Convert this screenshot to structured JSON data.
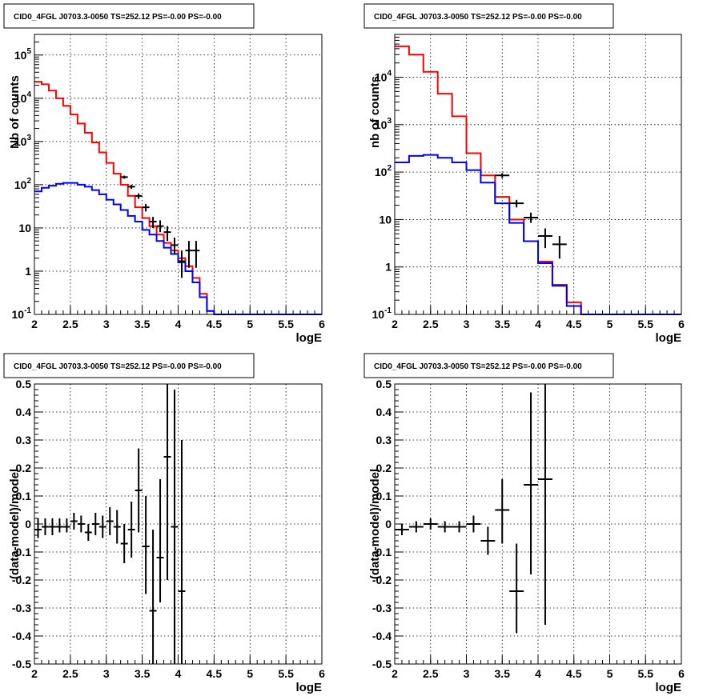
{
  "chart_data": [
    {
      "type": "line",
      "title": "CID0_4FGL J0703.3-0050 TS=252.12 PS=-0.00 PS=-0.00",
      "xlabel": "logE",
      "ylabel": "Nb of counts",
      "xlim": [
        2,
        6
      ],
      "ylim": [
        0.1,
        300000
      ],
      "yscale": "log",
      "grid": true,
      "x_ticks": [
        "2",
        "2.5",
        "3",
        "3.5",
        "4",
        "4.5",
        "5",
        "5.5",
        "6"
      ],
      "y_ticks": [
        {
          "value": 0.1,
          "base": "10",
          "exp": "-1"
        },
        {
          "value": 1,
          "label": "1"
        },
        {
          "value": 10,
          "label": "10"
        },
        {
          "value": 100,
          "base": "10",
          "exp": "2"
        },
        {
          "value": 1000,
          "base": "10",
          "exp": "3"
        },
        {
          "value": 10000,
          "base": "10",
          "exp": "4"
        },
        {
          "value": 100000,
          "base": "10",
          "exp": "5"
        }
      ],
      "bin_edges": [
        2.0,
        2.1,
        2.2,
        2.3,
        2.4,
        2.5,
        2.6,
        2.7,
        2.8,
        2.9,
        3.0,
        3.1,
        3.2,
        3.3,
        3.4,
        3.5,
        3.6,
        3.7,
        3.8,
        3.9,
        4.0,
        4.1,
        4.2,
        4.3,
        4.4,
        4.5,
        4.6,
        4.7,
        4.8,
        4.9,
        5.0,
        5.1,
        5.2,
        5.3,
        5.4,
        5.5,
        5.6,
        5.7,
        5.8,
        5.9,
        6.0
      ],
      "series": [
        {
          "color": "#ff0000",
          "style": "step",
          "values": [
            24000,
            21000,
            15000,
            10000,
            6700,
            4200,
            2600,
            1600,
            950,
            560,
            320,
            180,
            100,
            55,
            30,
            17,
            11,
            7,
            4.5,
            3,
            2,
            1.3,
            0.7,
            0.3,
            0.12,
            0.1,
            0.1,
            0.1,
            0.1,
            0.1,
            0.1,
            0.1,
            0.1,
            0.1,
            0.1,
            0.1,
            0.1,
            0.1,
            0.1,
            0.1
          ]
        },
        {
          "color": "#0000ff",
          "style": "step",
          "values": [
            70,
            85,
            95,
            105,
            110,
            110,
            100,
            90,
            75,
            60,
            45,
            35,
            26,
            19,
            14,
            9,
            7,
            5,
            3.5,
            2.5,
            1.6,
            1.0,
            0.55,
            0.25,
            0.12,
            0.1,
            0.1,
            0.1,
            0.1,
            0.1,
            0.1,
            0.1,
            0.1,
            0.1,
            0.1,
            0.1,
            0.1,
            0.1,
            0.1,
            0.1
          ]
        }
      ],
      "points": [
        {
          "x": 3.25,
          "y": 150,
          "lo": 138,
          "hi": 162,
          "xerr": 0.05
        },
        {
          "x": 3.35,
          "y": 90,
          "lo": 80,
          "hi": 100,
          "xerr": 0.05
        },
        {
          "x": 3.45,
          "y": 55,
          "lo": 47,
          "hi": 63,
          "xerr": 0.05
        },
        {
          "x": 3.55,
          "y": 30,
          "lo": 24,
          "hi": 36,
          "xerr": 0.05
        },
        {
          "x": 3.65,
          "y": 14,
          "lo": 10,
          "hi": 18,
          "xerr": 0.05
        },
        {
          "x": 3.75,
          "y": 11,
          "lo": 8,
          "hi": 15,
          "xerr": 0.05
        },
        {
          "x": 3.85,
          "y": 8,
          "lo": 5,
          "hi": 11,
          "xerr": 0.05
        },
        {
          "x": 3.95,
          "y": 4,
          "lo": 2.5,
          "hi": 6,
          "xerr": 0.05
        },
        {
          "x": 4.05,
          "y": 1.7,
          "lo": 0.7,
          "hi": 3,
          "xerr": 0.05
        },
        {
          "x": 4.15,
          "y": 3,
          "lo": 1.2,
          "hi": 5,
          "xerr": 0.05
        },
        {
          "x": 4.25,
          "y": 3,
          "lo": 1.2,
          "hi": 5,
          "xerr": 0.05
        }
      ]
    },
    {
      "type": "line",
      "title": "CID0_4FGL J0703.3-0050 TS=252.12 PS=-0.00 PS=-0.00",
      "xlabel": "logE",
      "ylabel": "nb of counts",
      "xlim": [
        2,
        6
      ],
      "ylim": [
        0.1,
        80000
      ],
      "yscale": "log",
      "grid": true,
      "x_ticks": [
        "2",
        "2.5",
        "3",
        "3.5",
        "4",
        "4.5",
        "5",
        "5.5",
        "6"
      ],
      "y_ticks": [
        {
          "value": 0.1,
          "base": "10",
          "exp": "-1"
        },
        {
          "value": 1,
          "label": "1"
        },
        {
          "value": 10,
          "label": "10"
        },
        {
          "value": 100,
          "base": "10",
          "exp": "2"
        },
        {
          "value": 1000,
          "base": "10",
          "exp": "3"
        },
        {
          "value": 10000,
          "base": "10",
          "exp": "4"
        }
      ],
      "bin_edges": [
        2.0,
        2.2,
        2.4,
        2.6,
        2.8,
        3.0,
        3.2,
        3.4,
        3.6,
        3.8,
        4.0,
        4.2,
        4.4,
        4.6,
        4.8,
        5.0,
        5.2,
        5.4,
        5.6,
        5.8,
        6.0
      ],
      "series": [
        {
          "color": "#ff0000",
          "style": "step",
          "values": [
            45000,
            30000,
            13000,
            4500,
            1500,
            250,
            85,
            30,
            10,
            3.5,
            1.3,
            0.42,
            0.18,
            0.1,
            0.1,
            0.1,
            0.1,
            0.1,
            0.1,
            0.1
          ]
        },
        {
          "color": "#0000ff",
          "style": "step",
          "values": [
            160,
            220,
            230,
            200,
            160,
            110,
            60,
            22,
            8.5,
            3.5,
            1.2,
            0.4,
            0.15,
            0.1,
            0.1,
            0.1,
            0.1,
            0.1,
            0.1,
            0.1
          ]
        }
      ],
      "points": [
        {
          "x": 3.5,
          "y": 85,
          "lo": 75,
          "hi": 95,
          "xerr": 0.1
        },
        {
          "x": 3.7,
          "y": 22,
          "lo": 18,
          "hi": 26,
          "xerr": 0.1
        },
        {
          "x": 3.9,
          "y": 11,
          "lo": 8.5,
          "hi": 14,
          "xerr": 0.1
        },
        {
          "x": 4.1,
          "y": 4.5,
          "lo": 2.5,
          "hi": 6.5,
          "xerr": 0.1
        },
        {
          "x": 4.3,
          "y": 3,
          "lo": 1.5,
          "hi": 4.5,
          "xerr": 0.1
        }
      ]
    },
    {
      "type": "scatter",
      "title": "CID0_4FGL J0703.3-0050 TS=252.12 PS=-0.00 PS=-0.00",
      "xlabel": "logE",
      "ylabel": "(data-model)/model",
      "xlim": [
        2,
        6
      ],
      "ylim": [
        -0.5,
        0.5
      ],
      "yscale": "linear",
      "grid": true,
      "x_ticks": [
        "2",
        "2.5",
        "3",
        "3.5",
        "4",
        "4.5",
        "5",
        "5.5",
        "6"
      ],
      "y_ticks": [
        {
          "value": -0.5,
          "label": "-0.5"
        },
        {
          "value": -0.4,
          "label": "-0.4"
        },
        {
          "value": -0.3,
          "label": "-0.3"
        },
        {
          "value": -0.2,
          "label": "-0.2"
        },
        {
          "value": -0.1,
          "label": "-0.1"
        },
        {
          "value": 0,
          "label": "0"
        },
        {
          "value": 0.1,
          "label": "0.1"
        },
        {
          "value": 0.2,
          "label": "0.2"
        },
        {
          "value": 0.3,
          "label": "0.3"
        },
        {
          "value": 0.4,
          "label": "0.4"
        },
        {
          "value": 0.5,
          "label": "0.5"
        }
      ],
      "points": [
        {
          "x": 2.05,
          "y": -0.02,
          "lo": -0.05,
          "hi": 0.02,
          "xerr": 0.05
        },
        {
          "x": 2.15,
          "y": -0.01,
          "lo": -0.04,
          "hi": 0.02,
          "xerr": 0.05
        },
        {
          "x": 2.25,
          "y": -0.01,
          "lo": -0.04,
          "hi": 0.02,
          "xerr": 0.05
        },
        {
          "x": 2.35,
          "y": -0.01,
          "lo": -0.03,
          "hi": 0.02,
          "xerr": 0.05
        },
        {
          "x": 2.45,
          "y": -0.01,
          "lo": -0.03,
          "hi": 0.02,
          "xerr": 0.05
        },
        {
          "x": 2.55,
          "y": 0.01,
          "lo": -0.02,
          "hi": 0.04,
          "xerr": 0.05
        },
        {
          "x": 2.65,
          "y": 0.0,
          "lo": -0.03,
          "hi": 0.03,
          "xerr": 0.05
        },
        {
          "x": 2.75,
          "y": -0.03,
          "lo": -0.06,
          "hi": 0.0,
          "xerr": 0.05
        },
        {
          "x": 2.85,
          "y": 0.0,
          "lo": -0.04,
          "hi": 0.04,
          "xerr": 0.05
        },
        {
          "x": 2.95,
          "y": -0.01,
          "lo": -0.05,
          "hi": 0.03,
          "xerr": 0.05
        },
        {
          "x": 3.05,
          "y": 0.01,
          "lo": -0.04,
          "hi": 0.06,
          "xerr": 0.05
        },
        {
          "x": 3.15,
          "y": -0.01,
          "lo": -0.07,
          "hi": 0.05,
          "xerr": 0.05
        },
        {
          "x": 3.25,
          "y": -0.07,
          "lo": -0.14,
          "hi": 0.0,
          "xerr": 0.05
        },
        {
          "x": 3.35,
          "y": -0.02,
          "lo": -0.12,
          "hi": 0.08,
          "xerr": 0.05
        },
        {
          "x": 3.45,
          "y": 0.12,
          "lo": -0.03,
          "hi": 0.27,
          "xerr": 0.05
        },
        {
          "x": 3.55,
          "y": -0.08,
          "lo": -0.25,
          "hi": 0.1,
          "xerr": 0.05
        },
        {
          "x": 3.65,
          "y": -0.31,
          "lo": -0.5,
          "hi": -0.02,
          "xerr": 0.05
        },
        {
          "x": 3.75,
          "y": -0.12,
          "lo": -0.28,
          "hi": 0.16,
          "xerr": 0.05
        },
        {
          "x": 3.85,
          "y": 0.24,
          "lo": -0.2,
          "hi": 0.5,
          "xerr": 0.05
        },
        {
          "x": 3.95,
          "y": -0.01,
          "lo": -0.5,
          "hi": 0.48,
          "xerr": 0.05
        },
        {
          "x": 4.05,
          "y": -0.24,
          "lo": -0.5,
          "hi": 0.3,
          "xerr": 0.05
        }
      ]
    },
    {
      "type": "scatter",
      "title": "CID0_4FGL J0703.3-0050 TS=252.12 PS=-0.00 PS=-0.00",
      "xlabel": "logE",
      "ylabel": "(data-model)/model",
      "xlim": [
        2,
        6
      ],
      "ylim": [
        -0.5,
        0.5
      ],
      "yscale": "linear",
      "grid": true,
      "x_ticks": [
        "2",
        "2.5",
        "3",
        "3.5",
        "4",
        "4.5",
        "5",
        "5.5",
        "6"
      ],
      "y_ticks": [
        {
          "value": -0.5,
          "label": "-0.5"
        },
        {
          "value": -0.4,
          "label": "-0.4"
        },
        {
          "value": -0.3,
          "label": "-0.3"
        },
        {
          "value": -0.2,
          "label": "-0.2"
        },
        {
          "value": -0.1,
          "label": "-0.1"
        },
        {
          "value": 0,
          "label": "0"
        },
        {
          "value": 0.1,
          "label": "0.1"
        },
        {
          "value": 0.2,
          "label": "0.2"
        },
        {
          "value": 0.3,
          "label": "0.3"
        },
        {
          "value": 0.4,
          "label": "0.4"
        },
        {
          "value": 0.5,
          "label": "0.5"
        }
      ],
      "points": [
        {
          "x": 2.1,
          "y": -0.02,
          "lo": -0.04,
          "hi": 0.0,
          "xerr": 0.1
        },
        {
          "x": 2.3,
          "y": -0.01,
          "lo": -0.03,
          "hi": 0.01,
          "xerr": 0.1
        },
        {
          "x": 2.5,
          "y": 0.0,
          "lo": -0.02,
          "hi": 0.02,
          "xerr": 0.1
        },
        {
          "x": 2.7,
          "y": -0.01,
          "lo": -0.03,
          "hi": 0.01,
          "xerr": 0.1
        },
        {
          "x": 2.9,
          "y": -0.01,
          "lo": -0.03,
          "hi": 0.01,
          "xerr": 0.1
        },
        {
          "x": 3.1,
          "y": 0.0,
          "lo": -0.03,
          "hi": 0.03,
          "xerr": 0.1
        },
        {
          "x": 3.3,
          "y": -0.06,
          "lo": -0.11,
          "hi": -0.01,
          "xerr": 0.1
        },
        {
          "x": 3.5,
          "y": 0.05,
          "lo": -0.07,
          "hi": 0.16,
          "xerr": 0.1
        },
        {
          "x": 3.7,
          "y": -0.24,
          "lo": -0.39,
          "hi": -0.07,
          "xerr": 0.1
        },
        {
          "x": 3.9,
          "y": 0.14,
          "lo": -0.18,
          "hi": 0.47,
          "xerr": 0.1
        },
        {
          "x": 4.1,
          "y": 0.16,
          "lo": -0.36,
          "hi": 0.5,
          "xerr": 0.1
        }
      ]
    }
  ]
}
